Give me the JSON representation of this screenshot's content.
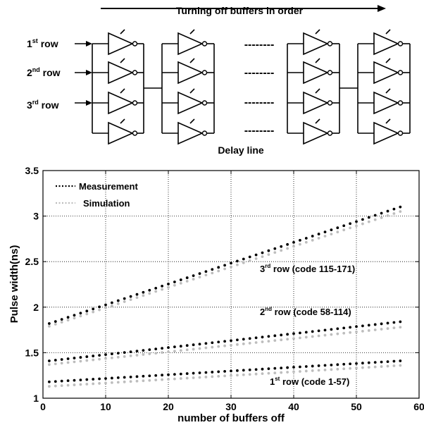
{
  "diagram": {
    "arrow_label": "Turning off buffers in order",
    "row_labels": [
      {
        "base": "1",
        "sup": "st",
        "rest": " row"
      },
      {
        "base": "2",
        "sup": "nd",
        "rest": " row"
      },
      {
        "base": "3",
        "sup": "rd",
        "rest": " row"
      }
    ],
    "ellipsis": "--------",
    "caption": "Delay line"
  },
  "chart_data": {
    "type": "scatter",
    "xlabel": "number of buffers off",
    "ylabel": "Pulse width(ns)",
    "xlim": [
      0,
      60
    ],
    "ylim": [
      1,
      3.5
    ],
    "xticks": [
      "0",
      "10",
      "20",
      "30",
      "40",
      "50",
      "60"
    ],
    "yticks": [
      "1",
      "1.5",
      "2",
      "2.5",
      "3",
      "3.5"
    ],
    "grid": true,
    "legend_position": "top-left",
    "series": [
      {
        "name": "Measurement",
        "color": "#000000",
        "x_start": 1,
        "x_end": 57,
        "groups": [
          [
            1.18,
            1.41
          ],
          [
            1.41,
            1.84
          ],
          [
            1.82,
            3.1
          ]
        ]
      },
      {
        "name": "Simulation",
        "color": "#bdbdbd",
        "x_start": 1,
        "x_end": 57,
        "groups": [
          [
            1.13,
            1.36
          ],
          [
            1.37,
            1.78
          ],
          [
            1.79,
            3.05
          ]
        ]
      }
    ],
    "annotations": [
      {
        "base": "3",
        "sup": "rd",
        "rest": " row (code 115-171)"
      },
      {
        "base": "2",
        "sup": "nd",
        "rest": " row (code 58-114)"
      },
      {
        "base": "1",
        "sup": "st",
        "rest": " row (code 1-57)"
      }
    ]
  }
}
